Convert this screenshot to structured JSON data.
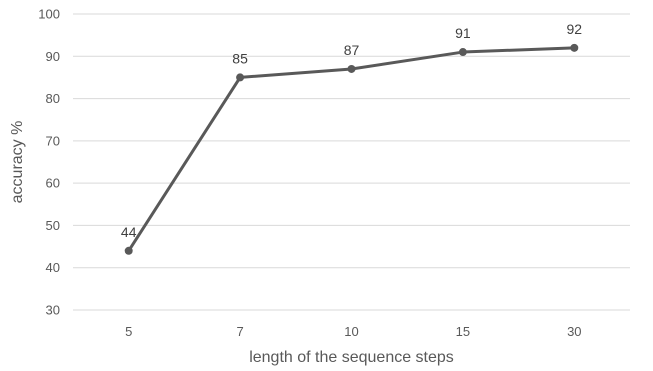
{
  "chart_data": {
    "type": "line",
    "title": "",
    "xlabel": "length of the sequence steps",
    "ylabel": "accuracy %",
    "categories": [
      "5",
      "7",
      "10",
      "15",
      "30"
    ],
    "series": [
      {
        "values": [
          44,
          85,
          87,
          91,
          92
        ]
      }
    ],
    "data_labels": [
      "44",
      "85",
      "87",
      "91",
      "92"
    ],
    "ylim": [
      30,
      100
    ],
    "yticks": [
      30,
      40,
      50,
      60,
      70,
      80,
      90,
      100
    ],
    "ytick_labels": [
      "30",
      "40",
      "50",
      "60",
      "70",
      "80",
      "90",
      "100"
    ],
    "grid": true,
    "legend": "none",
    "colors": {
      "line": "#595959",
      "grid": "#d9d9d9",
      "text": "#595959"
    }
  }
}
